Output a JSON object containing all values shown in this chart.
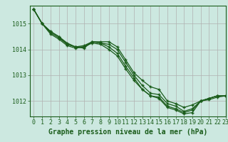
{
  "background_color": "#cce8e0",
  "grid_color": "#b0b0b0",
  "line_color": "#1a5c1a",
  "xlabel": "Graphe pression niveau de la mer (hPa)",
  "xlim": [
    -0.5,
    23
  ],
  "ylim": [
    1011.4,
    1015.7
  ],
  "yticks": [
    1012,
    1013,
    1014,
    1015
  ],
  "xticks": [
    0,
    1,
    2,
    3,
    4,
    5,
    6,
    7,
    8,
    9,
    10,
    11,
    12,
    13,
    14,
    15,
    16,
    17,
    18,
    19,
    20,
    21,
    22,
    23
  ],
  "series": [
    [
      1015.55,
      1015.0,
      1014.7,
      1014.5,
      1014.2,
      1014.1,
      1014.1,
      1014.3,
      1014.3,
      1014.3,
      1014.1,
      1013.6,
      1013.1,
      1012.8,
      1012.55,
      1012.45,
      1012.0,
      1011.9,
      1011.75,
      1011.85,
      1012.0,
      1012.1,
      1012.2,
      1012.2
    ],
    [
      1015.55,
      1015.0,
      1014.65,
      1014.45,
      1014.2,
      1014.1,
      1014.15,
      1014.3,
      1014.25,
      1014.2,
      1014.0,
      1013.5,
      1013.0,
      1012.6,
      1012.3,
      1012.25,
      1011.9,
      1011.8,
      1011.6,
      1011.7,
      1012.0,
      1012.1,
      1012.2,
      1012.2
    ],
    [
      1015.55,
      1015.0,
      1014.6,
      1014.4,
      1014.15,
      1014.05,
      1014.1,
      1014.25,
      1014.2,
      1014.0,
      1013.75,
      1013.25,
      1012.8,
      1012.45,
      1012.2,
      1012.15,
      1011.8,
      1011.7,
      1011.55,
      1011.65,
      1012.0,
      1012.1,
      1012.2,
      1012.2
    ],
    [
      1015.55,
      1015.0,
      1014.7,
      1014.5,
      1014.25,
      1014.1,
      1014.05,
      1014.3,
      1014.25,
      1014.1,
      1013.85,
      1013.35,
      1012.9,
      1012.45,
      1012.2,
      1012.1,
      1011.75,
      1011.65,
      1011.5,
      1011.55,
      1012.0,
      1012.05,
      1012.15,
      1012.2
    ]
  ],
  "tick_fontsize": 6,
  "xlabel_fontsize": 7
}
